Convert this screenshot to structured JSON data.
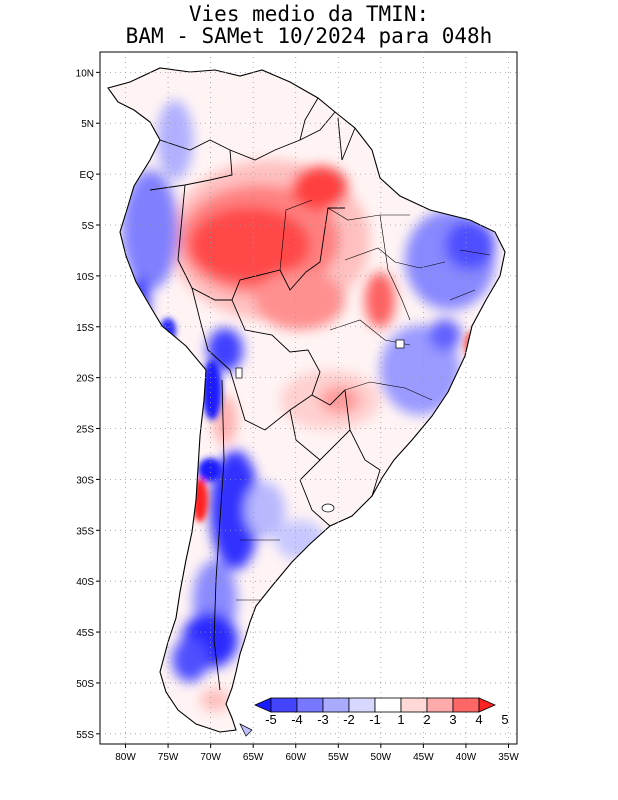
{
  "title": {
    "line1": "Vies medio da TMIN:",
    "line2": "BAM - SAMet 10/2024  para 048h"
  },
  "axes": {
    "lat_labels": [
      "10N",
      "5N",
      "EQ",
      "5S",
      "10S",
      "15S",
      "20S",
      "25S",
      "30S",
      "35S",
      "40S",
      "45S",
      "50S",
      "55S"
    ],
    "lat_values": [
      10,
      5,
      0,
      -5,
      -10,
      -15,
      -20,
      -25,
      -30,
      -35,
      -40,
      -45,
      -50,
      -55
    ],
    "lon_labels": [
      "80W",
      "75W",
      "70W",
      "65W",
      "60W",
      "55W",
      "50W",
      "45W",
      "40W",
      "35W"
    ],
    "lon_values": [
      -80,
      -75,
      -70,
      -65,
      -60,
      -55,
      -50,
      -45,
      -40,
      -35
    ],
    "lon_range": [
      -83,
      -34
    ],
    "lat_range": [
      -56,
      12
    ]
  },
  "colorbar": {
    "labels": [
      "-5",
      "-4",
      "-3",
      "-2",
      "-1",
      "1",
      "2",
      "3",
      "4",
      "5"
    ],
    "colors": [
      "#1a1aff",
      "#4444ff",
      "#7777ff",
      "#aaaaff",
      "#d8d8ff",
      "#ffffff",
      "#ffd8d8",
      "#ffaaaa",
      "#ff6666",
      "#ff2222"
    ]
  },
  "legend_colors": {
    "warm_strong": "#ff3333",
    "warm_mid": "#ff8080",
    "warm_light": "#ffc8c8",
    "cold_strong": "#2020ff",
    "cold_mid": "#7070ff",
    "cold_light": "#c0c0ff"
  }
}
